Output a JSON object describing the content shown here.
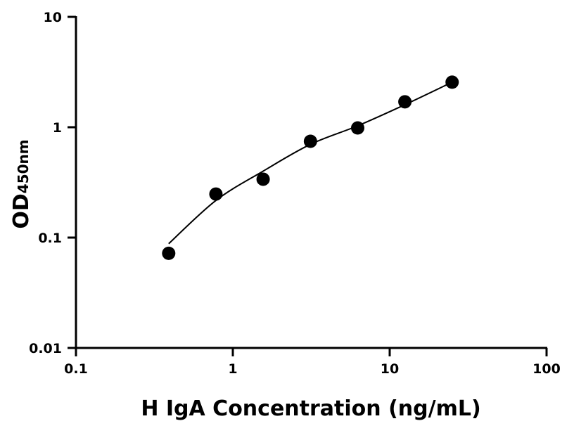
{
  "chart_data": {
    "type": "scatter",
    "xlabel": "H IgA Concentration (ng/mL)",
    "ylabel": "OD",
    "ylabel_subscript": "450nm",
    "xscale": "log",
    "yscale": "log",
    "xlim": [
      0.1,
      100
    ],
    "ylim": [
      0.01,
      10
    ],
    "xticks": [
      {
        "v": 0.1,
        "label": "0.1"
      },
      {
        "v": 1,
        "label": "1"
      },
      {
        "v": 10,
        "label": "10"
      },
      {
        "v": 100,
        "label": "100"
      }
    ],
    "yticks": [
      {
        "v": 0.01,
        "label": "0.01"
      },
      {
        "v": 0.1,
        "label": "0.1"
      },
      {
        "v": 1,
        "label": "1"
      },
      {
        "v": 10,
        "label": "10"
      }
    ],
    "grid": false,
    "points": {
      "x": [
        0.39,
        0.78,
        1.56,
        3.125,
        6.25,
        12.5,
        25
      ],
      "y": [
        0.072,
        0.248,
        0.338,
        0.746,
        0.985,
        1.7,
        2.56
      ]
    },
    "fit_curve": {
      "x": [
        0.39,
        0.78,
        1.56,
        3.125,
        6.25,
        12.5,
        25
      ],
      "y": [
        0.088,
        0.217,
        0.4,
        0.7,
        1.03,
        1.6,
        2.56
      ]
    },
    "colors": {
      "points": "#000000",
      "line": "#000000"
    }
  }
}
